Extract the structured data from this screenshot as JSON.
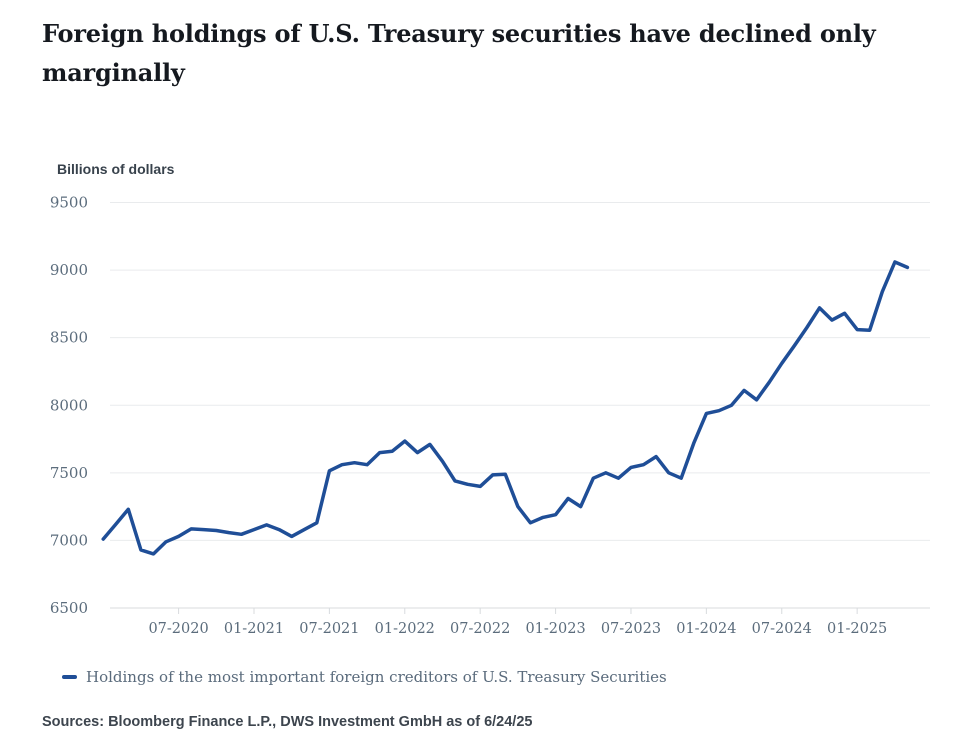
{
  "header": {
    "title": "Foreign holdings of U.S. Treasury securities have declined only marginally"
  },
  "chart": {
    "axis_title": "Billions of dollars",
    "legend_label": "Holdings of the most important foreign creditors of U.S. Treasury Securities",
    "footnote": "Sources: Bloomberg Finance L.P., DWS Investment GmbH as of 6/24/25"
  },
  "chart_data": {
    "type": "line",
    "title": "Foreign holdings of U.S. Treasury securities have declined only marginally",
    "xlabel": "",
    "ylabel": "Billions of dollars",
    "ylim": [
      6500,
      9500
    ],
    "grid": "horizontal",
    "legend_position": "bottom-left",
    "yticks": [
      6500,
      7000,
      7500,
      8000,
      8500,
      9000,
      9500
    ],
    "xticks": [
      {
        "index": 6,
        "label": "07-2020"
      },
      {
        "index": 12,
        "label": "01-2021"
      },
      {
        "index": 18,
        "label": "07-2021"
      },
      {
        "index": 24,
        "label": "01-2022"
      },
      {
        "index": 30,
        "label": "07-2022"
      },
      {
        "index": 36,
        "label": "01-2023"
      },
      {
        "index": 42,
        "label": "07-2023"
      },
      {
        "index": 48,
        "label": "01-2024"
      },
      {
        "index": 54,
        "label": "07-2024"
      },
      {
        "index": 60,
        "label": "01-2025"
      }
    ],
    "x": [
      "01-2020",
      "02-2020",
      "03-2020",
      "04-2020",
      "05-2020",
      "06-2020",
      "07-2020",
      "08-2020",
      "09-2020",
      "10-2020",
      "11-2020",
      "12-2020",
      "01-2021",
      "02-2021",
      "03-2021",
      "04-2021",
      "05-2021",
      "06-2021",
      "07-2021",
      "08-2021",
      "09-2021",
      "10-2021",
      "11-2021",
      "12-2021",
      "01-2022",
      "02-2022",
      "03-2022",
      "04-2022",
      "05-2022",
      "06-2022",
      "07-2022",
      "08-2022",
      "09-2022",
      "10-2022",
      "11-2022",
      "12-2022",
      "01-2023",
      "02-2023",
      "03-2023",
      "04-2023",
      "05-2023",
      "06-2023",
      "07-2023",
      "08-2023",
      "09-2023",
      "10-2023",
      "11-2023",
      "12-2023",
      "01-2024",
      "02-2024",
      "03-2024",
      "04-2024",
      "05-2024",
      "06-2024",
      "07-2024",
      "08-2024",
      "09-2024",
      "10-2024",
      "11-2024",
      "12-2024",
      "01-2025",
      "02-2025",
      "03-2025",
      "04-2025",
      "05-2025"
    ],
    "series": [
      {
        "name": "Holdings of the most important foreign creditors of U.S. Treasury Securities",
        "color": "#1f4e97",
        "values": [
          7010,
          7120,
          7230,
          6930,
          6900,
          6990,
          7030,
          7085,
          7080,
          7073,
          7058,
          7045,
          7080,
          7115,
          7080,
          7030,
          7080,
          7130,
          7515,
          7560,
          7575,
          7560,
          7650,
          7660,
          7735,
          7650,
          7710,
          7585,
          7440,
          7415,
          7400,
          7485,
          7490,
          7250,
          7130,
          7170,
          7190,
          7310,
          7250,
          7460,
          7500,
          7460,
          7540,
          7560,
          7620,
          7500,
          7460,
          7720,
          7940,
          7960,
          8000,
          8110,
          8040,
          8170,
          8310,
          8440,
          8575,
          8720,
          8630,
          8680,
          8560,
          8555,
          8840,
          9060,
          9020
        ]
      }
    ],
    "colors": {
      "line": "#1f4e97",
      "grid": "#e9ebed",
      "axis": "#d8dbde",
      "tick_text": "#5b6c7c",
      "title_text": "#15191f"
    }
  }
}
